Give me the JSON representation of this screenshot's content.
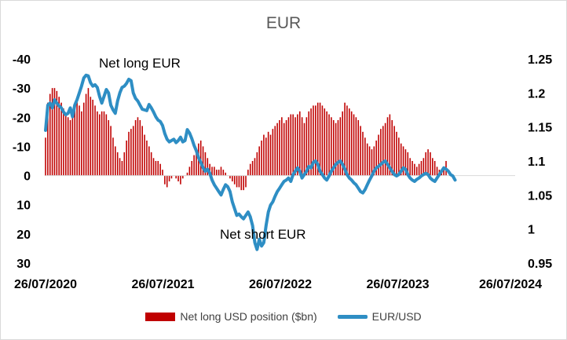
{
  "chart_data": {
    "type": "bar+line",
    "title": "EUR",
    "left_axis": {
      "ticks": [
        -40,
        -30,
        -20,
        -10,
        0,
        10,
        20,
        30
      ],
      "range": [
        -40,
        30
      ],
      "inverted": true
    },
    "right_axis": {
      "ticks": [
        1.25,
        1.2,
        1.15,
        1.1,
        1.05,
        1,
        0.95
      ],
      "range": [
        0.95,
        1.25
      ]
    },
    "x_tick_labels": [
      "26/07/2020",
      "26/07/2021",
      "26/07/2022",
      "26/07/2023",
      "26/07/2024"
    ],
    "annotations": [
      {
        "text": "Net long EUR"
      },
      {
        "text": "Net short EUR"
      }
    ],
    "colors": {
      "bars": "#c00000",
      "line": "#2e8ec4"
    },
    "series": [
      {
        "name": "Net long USD position ($bn)",
        "type": "bar",
        "axis": "left",
        "start_date": "2020-07-26",
        "step_days": 7,
        "values": [
          -13,
          -25,
          -28,
          -30,
          -30,
          -29,
          -27,
          -25,
          -23,
          -21,
          -20,
          -19,
          -21,
          -23,
          -26,
          -24,
          -22,
          -25,
          -28,
          -30,
          -27,
          -26,
          -24,
          -22,
          -21,
          -22,
          -22,
          -21,
          -19,
          -17,
          -13,
          -10,
          -8,
          -6,
          -5,
          -8,
          -12,
          -15,
          -16,
          -17,
          -19,
          -20,
          -19,
          -17,
          -14,
          -12,
          -10,
          -8,
          -6,
          -5,
          -5,
          -4,
          -2,
          3,
          4,
          2,
          1,
          0,
          1,
          2,
          3,
          1,
          0,
          -1,
          -3,
          -5,
          -7,
          -9,
          -11,
          -12,
          -10,
          -8,
          -6,
          -4,
          -3,
          -3,
          -2,
          -2,
          -3,
          -2,
          -1,
          0,
          1,
          2,
          3,
          4,
          4,
          5,
          5,
          4,
          -2,
          -4,
          -5,
          -6,
          -8,
          -10,
          -12,
          -14,
          -13,
          -15,
          -14,
          -16,
          -17,
          -18,
          -19,
          -20,
          -18,
          -19,
          -20,
          -21,
          -21,
          -20,
          -21,
          -22,
          -20,
          -18,
          -20,
          -22,
          -23,
          -24,
          -24,
          -25,
          -25,
          -24,
          -23,
          -22,
          -21,
          -20,
          -19,
          -18,
          -19,
          -20,
          -22,
          -25,
          -24,
          -23,
          -22,
          -21,
          -20,
          -19,
          -17,
          -15,
          -13,
          -11,
          -10,
          -9,
          -10,
          -12,
          -14,
          -16,
          -17,
          -18,
          -20,
          -21,
          -19,
          -17,
          -15,
          -13,
          -11,
          -10,
          -9,
          -8,
          -6,
          -5,
          -4,
          -3,
          -4,
          -5,
          -6,
          -8,
          -9,
          -8,
          -6,
          -5,
          -3,
          -2,
          -1,
          -3,
          -5
        ]
      },
      {
        "name": "EUR/USD",
        "type": "line",
        "axis": "right",
        "start_date": "2020-07-26",
        "step_days": 7,
        "values": [
          1.145,
          1.182,
          1.185,
          1.178,
          1.19,
          1.185,
          1.181,
          1.178,
          1.172,
          1.168,
          1.17,
          1.178,
          1.165,
          1.182,
          1.19,
          1.2,
          1.21,
          1.222,
          1.226,
          1.225,
          1.215,
          1.21,
          1.212,
          1.208,
          1.195,
          1.185,
          1.195,
          1.205,
          1.2,
          1.182,
          1.175,
          1.17,
          1.188,
          1.2,
          1.208,
          1.21,
          1.214,
          1.22,
          1.218,
          1.2,
          1.192,
          1.188,
          1.182,
          1.176,
          1.175,
          1.174,
          1.183,
          1.178,
          1.172,
          1.165,
          1.16,
          1.158,
          1.152,
          1.14,
          1.132,
          1.128,
          1.13,
          1.132,
          1.127,
          1.13,
          1.135,
          1.128,
          1.13,
          1.146,
          1.141,
          1.133,
          1.123,
          1.115,
          1.105,
          1.098,
          1.09,
          1.085,
          1.088,
          1.082,
          1.072,
          1.065,
          1.06,
          1.055,
          1.05,
          1.058,
          1.065,
          1.062,
          1.055,
          1.04,
          1.03,
          1.02,
          1.022,
          1.018,
          1.015,
          1.02,
          1.025,
          1.018,
          1.005,
          0.98,
          0.97,
          0.985,
          0.975,
          0.98,
          1.005,
          1.025,
          1.035,
          1.04,
          1.048,
          1.055,
          1.06,
          1.065,
          1.07,
          1.072,
          1.075,
          1.07,
          1.08,
          1.085,
          1.09,
          1.085,
          1.075,
          1.08,
          1.085,
          1.092,
          1.09,
          1.098,
          1.1,
          1.095,
          1.085,
          1.08,
          1.075,
          1.072,
          1.078,
          1.085,
          1.09,
          1.095,
          1.098,
          1.1,
          1.095,
          1.088,
          1.08,
          1.075,
          1.072,
          1.068,
          1.065,
          1.06,
          1.055,
          1.053,
          1.058,
          1.065,
          1.072,
          1.078,
          1.085,
          1.09,
          1.092,
          1.095,
          1.098,
          1.1,
          1.095,
          1.09,
          1.085,
          1.08,
          1.078,
          1.08,
          1.085,
          1.09,
          1.088,
          1.08,
          1.075,
          1.072,
          1.07,
          1.073,
          1.075,
          1.078,
          1.08,
          1.082,
          1.08,
          1.075,
          1.072,
          1.07,
          1.075,
          1.08,
          1.085,
          1.09,
          1.088,
          1.085,
          1.08,
          1.078,
          1.072
        ]
      }
    ],
    "legend_position": "bottom",
    "grid": false
  }
}
